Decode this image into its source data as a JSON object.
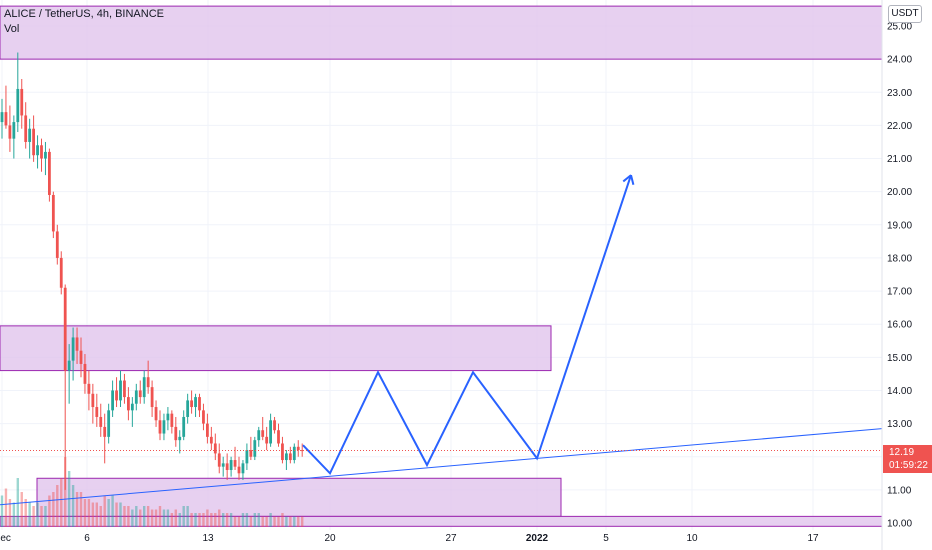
{
  "legend": {
    "symbol": "ALICE / TetherUS, 4h, BINANCE",
    "indicator": "Vol"
  },
  "currency_label": "USDT",
  "last_price": {
    "value": "12.19",
    "countdown": "01:59:22"
  },
  "colors": {
    "up": "#26a69a",
    "down": "#ef5350",
    "zone_fill": "#e1c4ec",
    "zone_border": "#9c27b0",
    "projection": "#2962ff"
  },
  "chart_data": {
    "type": "candlestick",
    "symbol": "ALICE / TetherUS",
    "timeframe": "4h",
    "exchange": "BINANCE",
    "ylim": [
      10.0,
      25.6
    ],
    "y_ticks": [
      "25.00",
      "24.00",
      "23.00",
      "22.00",
      "21.00",
      "20.00",
      "19.00",
      "18.00",
      "17.00",
      "16.00",
      "15.00",
      "14.00",
      "13.00",
      "12.00",
      "11.00",
      "10.00"
    ],
    "x_ticks": [
      "Dec",
      "6",
      "13",
      "20",
      "27",
      "2022",
      "5",
      "10",
      "17"
    ],
    "ohlc_4h": [
      [
        22.1,
        22.8,
        21.6,
        22.4
      ],
      [
        22.4,
        23.2,
        21.9,
        22.0
      ],
      [
        22.0,
        22.6,
        21.2,
        21.6
      ],
      [
        21.6,
        22.3,
        21.0,
        22.1
      ],
      [
        22.1,
        24.2,
        21.8,
        23.1
      ],
      [
        23.1,
        23.4,
        21.9,
        22.3
      ],
      [
        22.3,
        22.7,
        21.3,
        21.5
      ],
      [
        21.5,
        22.2,
        21.0,
        21.9
      ],
      [
        21.9,
        22.3,
        20.9,
        21.1
      ],
      [
        21.1,
        21.7,
        20.7,
        21.4
      ],
      [
        21.4,
        21.6,
        20.6,
        21.0
      ],
      [
        21.0,
        21.5,
        20.5,
        21.2
      ],
      [
        21.2,
        21.3,
        19.7,
        19.9
      ],
      [
        19.9,
        20.0,
        18.6,
        18.8
      ],
      [
        18.8,
        19.0,
        17.8,
        18.0
      ],
      [
        18.0,
        18.2,
        16.9,
        17.1
      ],
      [
        17.1,
        17.2,
        11.0,
        14.6
      ],
      [
        14.6,
        15.4,
        13.6,
        14.9
      ],
      [
        14.9,
        15.9,
        14.3,
        15.6
      ],
      [
        15.6,
        15.9,
        14.8,
        15.2
      ],
      [
        15.2,
        15.6,
        14.4,
        14.8
      ],
      [
        14.8,
        15.1,
        13.9,
        14.2
      ],
      [
        14.2,
        14.6,
        13.4,
        13.9
      ],
      [
        13.9,
        14.2,
        13.0,
        13.5
      ],
      [
        13.5,
        13.9,
        12.9,
        13.2
      ],
      [
        13.2,
        13.6,
        12.6,
        12.9
      ],
      [
        12.9,
        13.3,
        11.8,
        12.6
      ],
      [
        12.6,
        13.6,
        12.4,
        13.4
      ],
      [
        13.4,
        14.3,
        13.2,
        14.0
      ],
      [
        14.0,
        14.4,
        13.5,
        13.7
      ],
      [
        13.7,
        14.6,
        13.5,
        14.3
      ],
      [
        14.3,
        14.5,
        13.6,
        13.8
      ],
      [
        13.8,
        14.1,
        13.1,
        13.4
      ],
      [
        13.4,
        13.8,
        12.9,
        13.6
      ],
      [
        13.6,
        14.2,
        13.4,
        14.0
      ],
      [
        14.0,
        14.3,
        13.6,
        13.8
      ],
      [
        13.8,
        14.6,
        13.6,
        14.4
      ],
      [
        14.4,
        14.9,
        13.9,
        14.1
      ],
      [
        14.1,
        14.3,
        13.2,
        13.5
      ],
      [
        13.5,
        13.7,
        12.9,
        13.1
      ],
      [
        13.1,
        13.4,
        12.5,
        12.7
      ],
      [
        12.7,
        13.3,
        12.5,
        13.1
      ],
      [
        13.1,
        13.5,
        12.8,
        13.3
      ],
      [
        13.3,
        13.4,
        12.7,
        12.9
      ],
      [
        12.9,
        13.2,
        12.3,
        12.5
      ],
      [
        12.5,
        12.8,
        12.1,
        12.6
      ],
      [
        12.6,
        13.4,
        12.5,
        13.2
      ],
      [
        13.2,
        13.9,
        13.0,
        13.7
      ],
      [
        13.7,
        14.0,
        13.3,
        13.5
      ],
      [
        13.5,
        13.9,
        13.2,
        13.8
      ],
      [
        13.8,
        13.9,
        13.2,
        13.4
      ],
      [
        13.4,
        13.6,
        12.8,
        13.0
      ],
      [
        13.0,
        13.3,
        12.4,
        12.6
      ],
      [
        12.6,
        12.9,
        12.2,
        12.4
      ],
      [
        12.4,
        12.7,
        11.9,
        12.1
      ],
      [
        12.1,
        12.4,
        11.5,
        11.7
      ],
      [
        11.7,
        12.0,
        11.4,
        11.8
      ],
      [
        11.8,
        12.1,
        11.3,
        11.6
      ],
      [
        11.6,
        12.0,
        11.4,
        11.9
      ],
      [
        11.9,
        12.3,
        11.6,
        11.7
      ],
      [
        11.7,
        12.0,
        11.3,
        11.5
      ],
      [
        11.5,
        11.9,
        11.3,
        11.8
      ],
      [
        11.8,
        12.4,
        11.6,
        12.2
      ],
      [
        12.2,
        12.6,
        11.9,
        12.0
      ],
      [
        12.0,
        12.6,
        11.9,
        12.5
      ],
      [
        12.5,
        12.9,
        12.3,
        12.8
      ],
      [
        12.8,
        13.2,
        12.5,
        12.6
      ],
      [
        12.6,
        12.9,
        12.2,
        12.4
      ],
      [
        12.4,
        13.3,
        12.3,
        13.1
      ],
      [
        13.1,
        13.2,
        12.7,
        12.8
      ],
      [
        12.8,
        13.0,
        12.3,
        12.4
      ],
      [
        12.4,
        12.6,
        11.8,
        11.9
      ],
      [
        11.9,
        12.2,
        11.6,
        12.1
      ],
      [
        12.1,
        12.3,
        11.8,
        11.9
      ],
      [
        11.9,
        12.4,
        11.8,
        12.3
      ],
      [
        12.3,
        12.5,
        12.0,
        12.2
      ],
      [
        12.2,
        12.4,
        12.0,
        12.19
      ]
    ],
    "volume_relative": [
      0.45,
      0.55,
      0.4,
      0.35,
      0.7,
      0.5,
      0.4,
      0.35,
      0.3,
      0.35,
      0.3,
      0.3,
      0.45,
      0.5,
      0.6,
      0.7,
      1.0,
      0.8,
      0.6,
      0.5,
      0.5,
      0.4,
      0.4,
      0.35,
      0.35,
      0.3,
      0.45,
      0.4,
      0.45,
      0.35,
      0.35,
      0.3,
      0.3,
      0.25,
      0.3,
      0.25,
      0.3,
      0.3,
      0.25,
      0.25,
      0.3,
      0.25,
      0.25,
      0.2,
      0.25,
      0.2,
      0.3,
      0.3,
      0.2,
      0.2,
      0.2,
      0.2,
      0.25,
      0.2,
      0.2,
      0.25,
      0.2,
      0.2,
      0.2,
      0.15,
      0.15,
      0.2,
      0.2,
      0.15,
      0.2,
      0.2,
      0.15,
      0.15,
      0.2,
      0.15,
      0.15,
      0.2,
      0.15,
      0.15,
      0.15,
      0.15,
      0.15
    ],
    "zones": [
      {
        "low": 24.0,
        "high": 25.6
      },
      {
        "low": 14.6,
        "high": 15.95
      },
      {
        "low": 10.2,
        "high": 11.35
      },
      {
        "low": 9.9,
        "high": 10.2
      }
    ],
    "trendline": {
      "from": [
        "Dec",
        10.55
      ],
      "to": [
        "17",
        12.85
      ]
    },
    "projection_path": [
      [
        "20",
        11.5
      ],
      [
        "23",
        14.55
      ],
      [
        "26",
        11.75
      ],
      [
        "29",
        14.55
      ],
      [
        "2022",
        11.95
      ],
      [
        "6",
        20.5
      ]
    ],
    "last_price": 12.19
  }
}
